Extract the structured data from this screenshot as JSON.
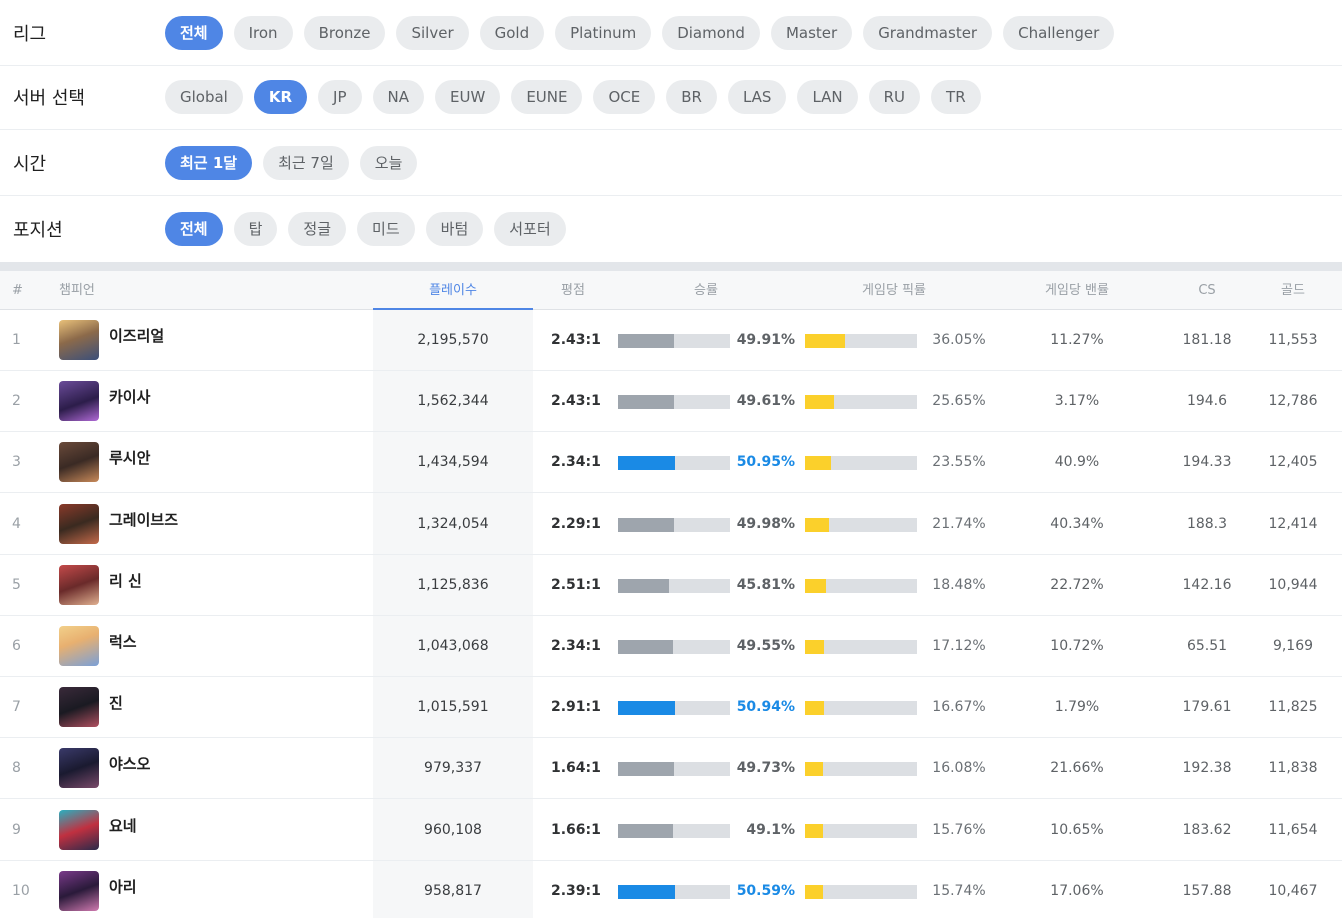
{
  "filters": {
    "league": {
      "label": "리그",
      "options": [
        "전체",
        "Iron",
        "Bronze",
        "Silver",
        "Gold",
        "Platinum",
        "Diamond",
        "Master",
        "Grandmaster",
        "Challenger"
      ],
      "selected": "전체"
    },
    "server": {
      "label": "서버 선택",
      "options": [
        "Global",
        "KR",
        "JP",
        "NA",
        "EUW",
        "EUNE",
        "OCE",
        "BR",
        "LAS",
        "LAN",
        "RU",
        "TR"
      ],
      "selected": "KR"
    },
    "period": {
      "label": "시간",
      "options": [
        "최근 1달",
        "최근 7일",
        "오늘"
      ],
      "selected": "최근 1달"
    },
    "position": {
      "label": "포지션",
      "options": [
        "전체",
        "탑",
        "정글",
        "미드",
        "바텀",
        "서포터"
      ],
      "selected": "전체"
    }
  },
  "table": {
    "headers": {
      "rank": "#",
      "champion": "챔피언",
      "plays": "플레이수",
      "kda": "평점",
      "winrate": "승률",
      "pickrate": "게임당 픽률",
      "banrate": "게임당 밴률",
      "cs": "CS",
      "gold": "골드"
    },
    "sorted_by": "plays",
    "colors": {
      "winrate_high": "#1a8ae5",
      "winrate_normal": "#9ea5ad",
      "pickrate": "#fbd02b",
      "bar_track": "#dcdfe3",
      "accent": "#4f86e5"
    },
    "rows": [
      {
        "rank": "1",
        "champion": "이즈리얼",
        "icon": "ezreal-portrait",
        "plays": "2,195,570",
        "kda": "2.43:1",
        "winrate": "49.91%",
        "winrate_value": 49.91,
        "pickrate": "36.05%",
        "pickrate_value": 36.05,
        "banrate": "11.27%",
        "cs": "181.18",
        "gold": "11,553"
      },
      {
        "rank": "2",
        "champion": "카이사",
        "icon": "kaisa-portrait",
        "plays": "1,562,344",
        "kda": "2.43:1",
        "winrate": "49.61%",
        "winrate_value": 49.61,
        "pickrate": "25.65%",
        "pickrate_value": 25.65,
        "banrate": "3.17%",
        "cs": "194.6",
        "gold": "12,786"
      },
      {
        "rank": "3",
        "champion": "루시안",
        "icon": "lucian-portrait",
        "plays": "1,434,594",
        "kda": "2.34:1",
        "winrate": "50.95%",
        "winrate_value": 50.95,
        "pickrate": "23.55%",
        "pickrate_value": 23.55,
        "banrate": "40.9%",
        "cs": "194.33",
        "gold": "12,405"
      },
      {
        "rank": "4",
        "champion": "그레이브즈",
        "icon": "graves-portrait",
        "plays": "1,324,054",
        "kda": "2.29:1",
        "winrate": "49.98%",
        "winrate_value": 49.98,
        "pickrate": "21.74%",
        "pickrate_value": 21.74,
        "banrate": "40.34%",
        "cs": "188.3",
        "gold": "12,414"
      },
      {
        "rank": "5",
        "champion": "리 신",
        "icon": "leesin-portrait",
        "plays": "1,125,836",
        "kda": "2.51:1",
        "winrate": "45.81%",
        "winrate_value": 45.81,
        "pickrate": "18.48%",
        "pickrate_value": 18.48,
        "banrate": "22.72%",
        "cs": "142.16",
        "gold": "10,944"
      },
      {
        "rank": "6",
        "champion": "럭스",
        "icon": "lux-portrait",
        "plays": "1,043,068",
        "kda": "2.34:1",
        "winrate": "49.55%",
        "winrate_value": 49.55,
        "pickrate": "17.12%",
        "pickrate_value": 17.12,
        "banrate": "10.72%",
        "cs": "65.51",
        "gold": "9,169"
      },
      {
        "rank": "7",
        "champion": "진",
        "icon": "jhin-portrait",
        "plays": "1,015,591",
        "kda": "2.91:1",
        "winrate": "50.94%",
        "winrate_value": 50.94,
        "pickrate": "16.67%",
        "pickrate_value": 16.67,
        "banrate": "1.79%",
        "cs": "179.61",
        "gold": "11,825"
      },
      {
        "rank": "8",
        "champion": "야스오",
        "icon": "yasuo-portrait",
        "plays": "979,337",
        "kda": "1.64:1",
        "winrate": "49.73%",
        "winrate_value": 49.73,
        "pickrate": "16.08%",
        "pickrate_value": 16.08,
        "banrate": "21.66%",
        "cs": "192.38",
        "gold": "11,838"
      },
      {
        "rank": "9",
        "champion": "요네",
        "icon": "yone-portrait",
        "plays": "960,108",
        "kda": "1.66:1",
        "winrate": "49.1%",
        "winrate_value": 49.1,
        "pickrate": "15.76%",
        "pickrate_value": 15.76,
        "banrate": "10.65%",
        "cs": "183.62",
        "gold": "11,654"
      },
      {
        "rank": "10",
        "champion": "아리",
        "icon": "ahri-portrait",
        "plays": "958,817",
        "kda": "2.39:1",
        "winrate": "50.59%",
        "winrate_value": 50.59,
        "pickrate": "15.74%",
        "pickrate_value": 15.74,
        "banrate": "17.06%",
        "cs": "157.88",
        "gold": "10,467"
      }
    ]
  }
}
